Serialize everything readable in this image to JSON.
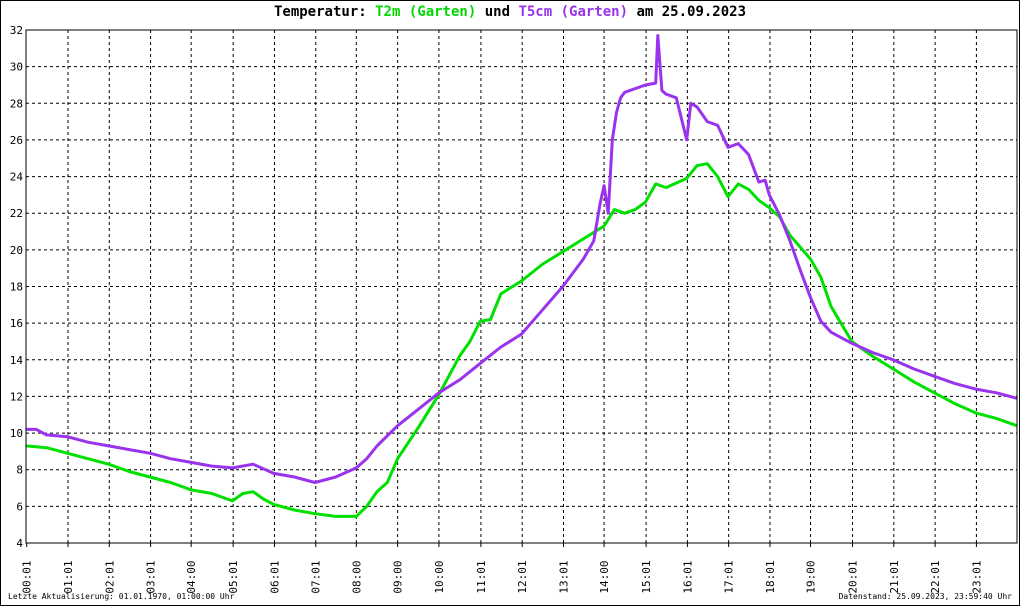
{
  "title": {
    "prefix": "Temperatur: ",
    "series1": "T2m (Garten)",
    "joiner": " und ",
    "series2": "T5cm (Garten)",
    "suffix": " am 25.09.2023"
  },
  "footer": {
    "left": "Letzte Aktualisierung: 01.01.1970, 01:00:00 Uhr",
    "right": "Datenstand: 25.09.2023, 23:59:40 Uhr"
  },
  "chart_data": {
    "type": "line",
    "title": "Temperatur: T2m (Garten) und T5cm (Garten) am 25.09.2023",
    "xlabel": "",
    "ylabel": "",
    "xlim": [
      0,
      24
    ],
    "ylim": [
      4,
      32
    ],
    "yticks": [
      4,
      6,
      8,
      10,
      12,
      14,
      16,
      18,
      20,
      22,
      24,
      26,
      28,
      30,
      32
    ],
    "xticks": [
      0.017,
      1.017,
      2.017,
      3.017,
      4.0,
      5.017,
      6.017,
      7.017,
      8.0,
      9.0,
      10.0,
      11.017,
      12.017,
      13.017,
      14.0,
      15.017,
      16.017,
      17.017,
      18.017,
      19.0,
      20.017,
      21.017,
      22.017,
      23.017
    ],
    "xtick_labels": [
      "00:01",
      "01:01",
      "02:01",
      "03:01",
      "04:00",
      "05:01",
      "06:01",
      "07:01",
      "08:00",
      "09:00",
      "10:00",
      "11:01",
      "12:01",
      "13:01",
      "14:00",
      "15:01",
      "16:01",
      "17:01",
      "18:01",
      "19:00",
      "20:01",
      "21:01",
      "22:01",
      "23:01"
    ],
    "grid": true,
    "series": [
      {
        "name": "T2m (Garten)",
        "color": "#00e000",
        "points": [
          [
            0,
            9.3
          ],
          [
            0.5,
            9.2
          ],
          [
            1,
            8.9
          ],
          [
            1.5,
            8.6
          ],
          [
            2,
            8.3
          ],
          [
            2.5,
            7.9
          ],
          [
            3,
            7.6
          ],
          [
            3.5,
            7.3
          ],
          [
            4,
            6.9
          ],
          [
            4.5,
            6.7
          ],
          [
            5,
            6.3
          ],
          [
            5.25,
            6.7
          ],
          [
            5.5,
            6.8
          ],
          [
            5.75,
            6.4
          ],
          [
            6,
            6.1
          ],
          [
            6.5,
            5.8
          ],
          [
            7,
            5.6
          ],
          [
            7.5,
            5.45
          ],
          [
            8,
            5.45
          ],
          [
            8.25,
            6.0
          ],
          [
            8.5,
            6.8
          ],
          [
            8.75,
            7.3
          ],
          [
            9,
            8.6
          ],
          [
            9.5,
            10.3
          ],
          [
            10,
            12.1
          ],
          [
            10.5,
            14.2
          ],
          [
            10.75,
            15.0
          ],
          [
            11,
            16.1
          ],
          [
            11.25,
            16.2
          ],
          [
            11.5,
            17.6
          ],
          [
            12,
            18.3
          ],
          [
            12.5,
            19.2
          ],
          [
            13,
            19.9
          ],
          [
            13.5,
            20.6
          ],
          [
            14,
            21.3
          ],
          [
            14.25,
            22.2
          ],
          [
            14.5,
            22.0
          ],
          [
            14.75,
            22.2
          ],
          [
            15,
            22.6
          ],
          [
            15.25,
            23.6
          ],
          [
            15.5,
            23.4
          ],
          [
            16,
            23.9
          ],
          [
            16.25,
            24.6
          ],
          [
            16.5,
            24.7
          ],
          [
            16.75,
            24.0
          ],
          [
            17,
            22.9
          ],
          [
            17.25,
            23.6
          ],
          [
            17.5,
            23.3
          ],
          [
            17.75,
            22.7
          ],
          [
            18,
            22.3
          ],
          [
            18.25,
            21.8
          ],
          [
            18.5,
            20.8
          ],
          [
            19,
            19.5
          ],
          [
            19.25,
            18.5
          ],
          [
            19.5,
            16.9
          ],
          [
            20,
            15.0
          ],
          [
            20.5,
            14.2
          ],
          [
            21,
            13.5
          ],
          [
            21.5,
            12.8
          ],
          [
            22,
            12.2
          ],
          [
            22.5,
            11.6
          ],
          [
            23,
            11.1
          ],
          [
            23.5,
            10.8
          ],
          [
            24,
            10.4
          ]
        ]
      },
      {
        "name": "T5cm (Garten)",
        "color": "#9933ee",
        "points": [
          [
            0,
            10.2
          ],
          [
            0.25,
            10.2
          ],
          [
            0.5,
            9.9
          ],
          [
            1,
            9.8
          ],
          [
            1.5,
            9.5
          ],
          [
            2,
            9.3
          ],
          [
            2.5,
            9.1
          ],
          [
            3,
            8.9
          ],
          [
            3.5,
            8.6
          ],
          [
            4,
            8.4
          ],
          [
            4.5,
            8.2
          ],
          [
            5,
            8.1
          ],
          [
            5.5,
            8.3
          ],
          [
            6,
            7.8
          ],
          [
            6.5,
            7.6
          ],
          [
            7,
            7.3
          ],
          [
            7.5,
            7.6
          ],
          [
            8,
            8.1
          ],
          [
            8.25,
            8.6
          ],
          [
            8.5,
            9.3
          ],
          [
            9,
            10.4
          ],
          [
            9.5,
            11.3
          ],
          [
            10,
            12.2
          ],
          [
            10.5,
            12.9
          ],
          [
            11,
            13.8
          ],
          [
            11.5,
            14.7
          ],
          [
            12,
            15.4
          ],
          [
            12.5,
            16.7
          ],
          [
            13,
            18.0
          ],
          [
            13.5,
            19.5
          ],
          [
            13.75,
            20.5
          ],
          [
            13.9,
            22.5
          ],
          [
            14,
            23.5
          ],
          [
            14.1,
            22.0
          ],
          [
            14.2,
            26.0
          ],
          [
            14.3,
            27.5
          ],
          [
            14.4,
            28.3
          ],
          [
            14.5,
            28.6
          ],
          [
            15,
            29.0
          ],
          [
            15.25,
            29.1
          ],
          [
            15.3,
            31.7
          ],
          [
            15.4,
            28.7
          ],
          [
            15.5,
            28.5
          ],
          [
            15.75,
            28.3
          ],
          [
            16,
            26.0
          ],
          [
            16.1,
            28.0
          ],
          [
            16.25,
            27.8
          ],
          [
            16.5,
            27.0
          ],
          [
            16.75,
            26.8
          ],
          [
            17,
            25.6
          ],
          [
            17.25,
            25.8
          ],
          [
            17.5,
            25.2
          ],
          [
            17.75,
            23.7
          ],
          [
            17.9,
            23.8
          ],
          [
            18,
            23.0
          ],
          [
            18.25,
            21.9
          ],
          [
            18.5,
            20.5
          ],
          [
            18.75,
            18.9
          ],
          [
            19,
            17.4
          ],
          [
            19.25,
            16.1
          ],
          [
            19.5,
            15.5
          ],
          [
            20,
            14.9
          ],
          [
            20.5,
            14.4
          ],
          [
            21,
            14.0
          ],
          [
            21.5,
            13.5
          ],
          [
            22,
            13.1
          ],
          [
            22.5,
            12.7
          ],
          [
            23,
            12.4
          ],
          [
            23.5,
            12.2
          ],
          [
            24,
            11.9
          ]
        ]
      }
    ]
  }
}
